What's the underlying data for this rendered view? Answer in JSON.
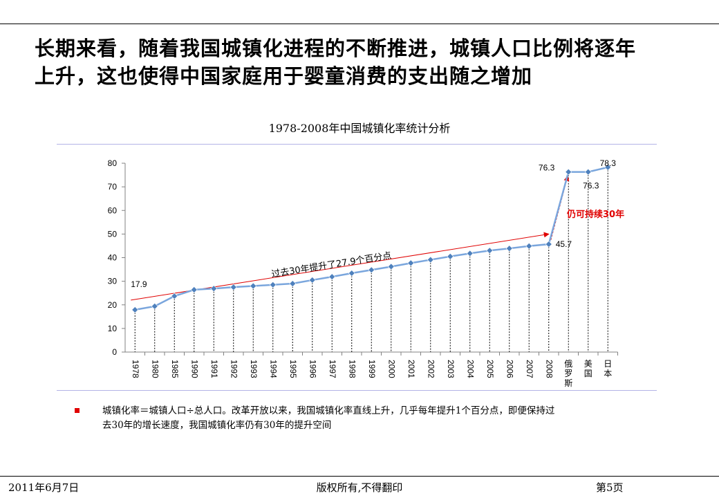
{
  "headline": {
    "line1": "长期来看，随着我国城镇化进程的不断推进，城镇人口比例将逐年",
    "line2": "上升，这也使得中国家庭用于婴童消费的支出随之增加"
  },
  "note": {
    "line1": "城镇化率＝城镇人口÷总人口。改革开放以来，我国城镇化率直线上升，几乎每年提升1个百分点，即便保持过",
    "line2": "去30年的增长速度，我国城镇化率仍有30年的提升空间"
  },
  "footer": {
    "date": "2011年6月7日",
    "center": "版权所有,不得翻印",
    "page": "第5页"
  },
  "colors": {
    "series": "#7aa6dd",
    "marker": "#4f81bd",
    "annotation": "#e00000",
    "rule": "#b3b3e6"
  },
  "chart_data": {
    "type": "line",
    "title": "1978-2008年中国城镇化率统计分析",
    "xlabel": "",
    "ylabel": "",
    "ylim": [
      0,
      80
    ],
    "yticks": [
      0,
      10,
      20,
      30,
      40,
      50,
      60,
      70,
      80
    ],
    "grid": false,
    "categories": [
      "1978",
      "1980",
      "1985",
      "1990",
      "1991",
      "1992",
      "1993",
      "1994",
      "1995",
      "1996",
      "1997",
      "1998",
      "1999",
      "2000",
      "2001",
      "2002",
      "2003",
      "2004",
      "2005",
      "2006",
      "2007",
      "2008",
      "俄罗斯",
      "美国",
      "日本"
    ],
    "values": [
      17.9,
      19.4,
      23.7,
      26.4,
      26.9,
      27.5,
      28.0,
      28.5,
      29.0,
      30.5,
      31.9,
      33.4,
      34.8,
      36.2,
      37.7,
      39.1,
      40.5,
      41.8,
      43.0,
      43.9,
      44.9,
      45.7,
      76.3,
      76.3,
      78.3
    ],
    "data_labels": [
      {
        "category": "1978",
        "text": "17.9"
      },
      {
        "category": "2008",
        "text": "45.7"
      },
      {
        "category": "俄罗斯",
        "text": "76.3"
      },
      {
        "category": "美国",
        "text": "76.3"
      },
      {
        "category": "日本",
        "text": "78.3"
      }
    ],
    "annotations": [
      {
        "text": "过去30年提升了27.9个百分点",
        "from_category": "1978",
        "from_value": 22,
        "to_category": "2008",
        "to_value": 50
      },
      {
        "text": "仍可持续30年",
        "from_category": "2008",
        "from_value": 45.7,
        "to_category": "俄罗斯",
        "to_value": 76.3
      }
    ]
  }
}
